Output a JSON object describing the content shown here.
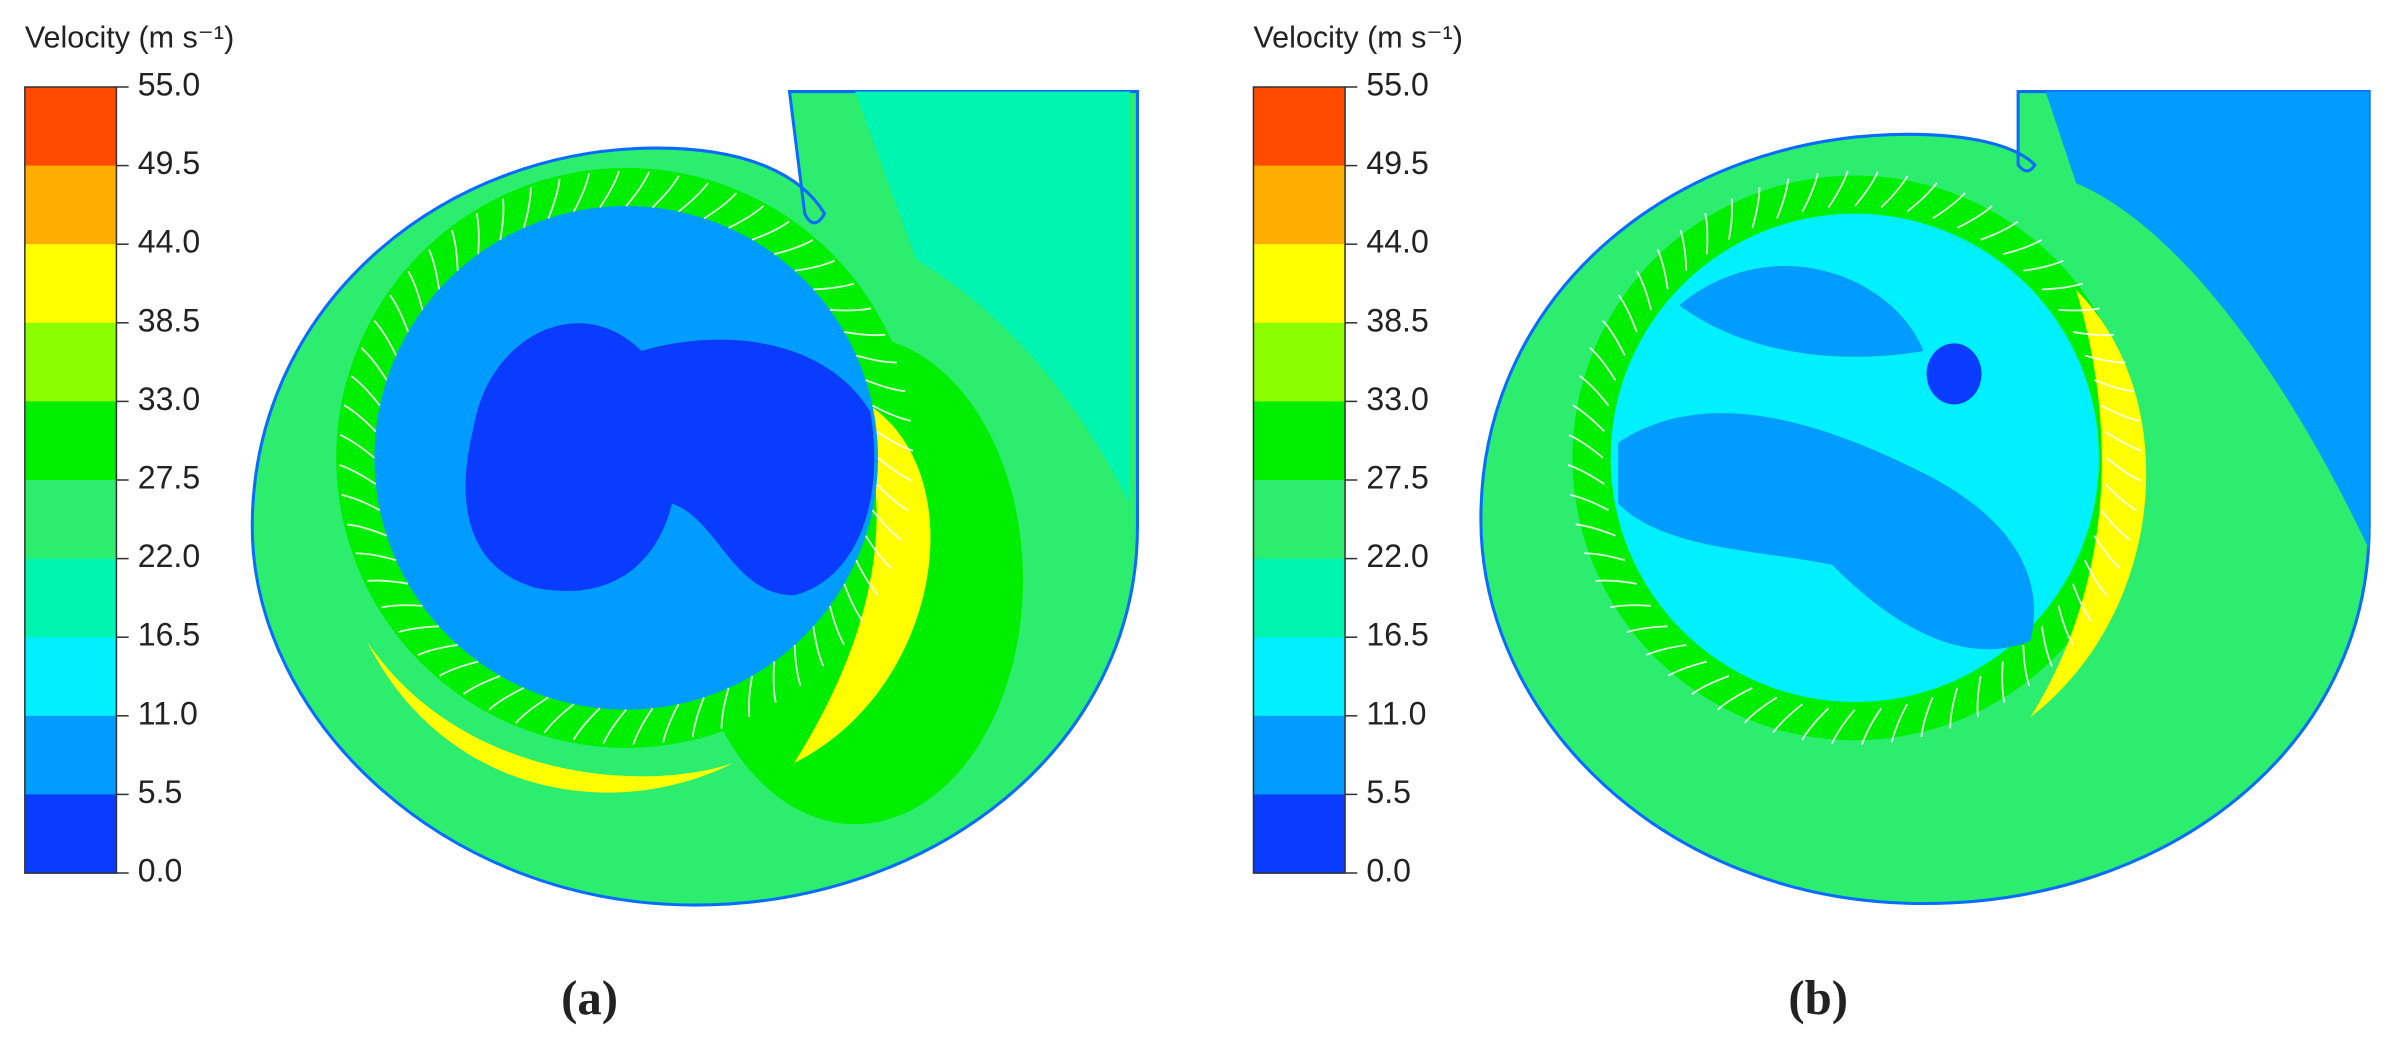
{
  "panels": [
    {
      "legend_title": "Velocity (m s⁻¹)",
      "legend_ticks": [
        "55.0",
        "49.5",
        "44.0",
        "38.5",
        "33.0",
        "27.5",
        "22.0",
        "16.5",
        "11.0",
        "5.5",
        "0.0"
      ],
      "label": "(a)"
    },
    {
      "legend_title": "Velocity (m s⁻¹)",
      "legend_ticks": [
        "55.0",
        "49.5",
        "44.0",
        "38.5",
        "33.0",
        "27.5",
        "22.0",
        "16.5",
        "11.0",
        "5.5",
        "0.0"
      ],
      "label": "(b)"
    }
  ],
  "colorbar_colors": [
    "#ff4a00",
    "#ffae00",
    "#ffff00",
    "#8bff00",
    "#00ee00",
    "#2ded6e",
    "#00f5b0",
    "#00f0ff",
    "#009cff",
    "#0a3cff"
  ]
}
